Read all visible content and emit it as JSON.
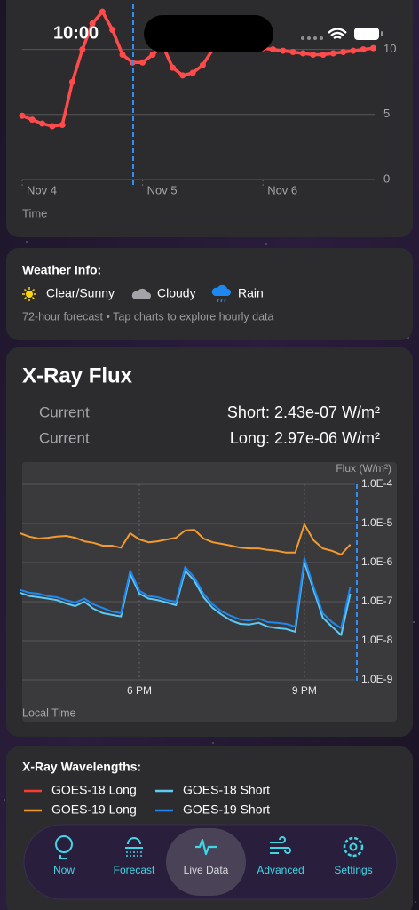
{
  "status_bar": {
    "time": "10:00"
  },
  "temp_chart": {
    "type": "line",
    "x_label": "Time",
    "categories": [
      "Nov 4",
      null,
      null,
      null,
      null,
      null,
      null,
      null,
      null,
      null,
      null,
      null,
      "Nov 5",
      null,
      null,
      null,
      null,
      null,
      null,
      null,
      null,
      null,
      null,
      null,
      "Nov 6",
      null,
      null,
      null,
      null,
      null,
      null,
      null,
      null,
      null,
      null,
      null
    ],
    "series": [
      {
        "color": "#ff4b4b",
        "values": [
          4.9,
          4.6,
          4.3,
          4.1,
          4.2,
          7.5,
          10,
          12,
          12.9,
          11.5,
          9.6,
          9.0,
          9.0,
          9.6,
          10.3,
          8.6,
          8.0,
          8.2,
          8.8,
          10.0,
          10.6,
          10.8,
          10.5,
          10.2,
          10.1,
          10.0,
          9.9,
          9.8,
          9.7,
          9.6,
          9.6,
          9.7,
          9.8,
          9.9,
          10.0,
          10.1
        ]
      }
    ],
    "ylim": [
      0,
      13.8
    ],
    "yticks": [
      0,
      5,
      10
    ],
    "grid": true
  },
  "weather_info": {
    "title": "Weather Info:",
    "items": [
      "Clear/Sunny",
      "Cloudy",
      "Rain"
    ],
    "note": "72-hour forecast • Tap charts to explore hourly data"
  },
  "xray": {
    "title": "X-Ray Flux",
    "readings": [
      {
        "label": "Current",
        "value": "Short: 2.43e-07 W/m²"
      },
      {
        "label": "Current",
        "value": "Long: 2.97e-06 W/m²"
      }
    ],
    "chart": {
      "type": "line",
      "y_label": "Flux (W/m²)",
      "x_label": "Local Time",
      "log_scale": true,
      "categories": [
        null,
        null,
        null,
        null,
        null,
        null,
        null,
        null,
        null,
        null,
        null,
        null,
        null,
        "6 PM",
        null,
        null,
        null,
        null,
        null,
        null,
        null,
        null,
        null,
        null,
        null,
        null,
        null,
        null,
        null,
        null,
        null,
        "9 PM",
        null,
        null,
        null,
        null,
        null
      ],
      "series": [
        {
          "color": "#f39a2d",
          "values": [
            5.6e-06,
            4.6e-06,
            4.1e-06,
            4.3e-06,
            4.6e-06,
            4.8e-06,
            4.3e-06,
            3.5e-06,
            3.2e-06,
            2.7e-06,
            2.7e-06,
            2.4e-06,
            5.6e-06,
            3.9e-06,
            3.3e-06,
            3.5e-06,
            3.9e-06,
            4.3e-06,
            6.6e-06,
            6.9e-06,
            4.1e-06,
            3.3e-06,
            3e-06,
            2.7e-06,
            2.4e-06,
            2.3e-06,
            2.3e-06,
            2.1e-06,
            2e-06,
            1.8e-06,
            1.8e-06,
            9.5e-06,
            3.7e-06,
            2.3e-06,
            2e-06,
            1.6e-06,
            2.9e-06
          ]
        },
        {
          "color": "#5ccaf5",
          "values": [
            1.7e-07,
            1.4e-07,
            1.3e-07,
            1.2e-07,
            1.1e-07,
            9e-08,
            7.7e-08,
            1e-07,
            6.6e-08,
            5.1e-08,
            4.6e-08,
            4.2e-08,
            5.1e-07,
            1.6e-07,
            1.2e-07,
            1.1e-07,
            9.5e-08,
            8.1e-08,
            6.2e-07,
            3.4e-07,
            1.3e-07,
            6.9e-08,
            4.6e-08,
            3.3e-08,
            2.7e-08,
            2.6e-08,
            2.9e-08,
            2.3e-08,
            2.1e-08,
            2e-08,
            1.7e-08,
            1e-06,
            2e-07,
            3.9e-08,
            2.3e-08,
            1.4e-08,
            1.6e-07
          ]
        },
        {
          "color": "#1e88f0",
          "values": [
            2e-07,
            1.7e-07,
            1.6e-07,
            1.4e-07,
            1.3e-07,
            1.1e-07,
            9.5e-08,
            1.2e-07,
            8.5e-08,
            6.9e-08,
            5.6e-08,
            5.1e-08,
            6.2e-07,
            1.9e-07,
            1.4e-07,
            1.3e-07,
            1.1e-07,
            1e-07,
            7.7e-07,
            4.1e-07,
            1.6e-07,
            8.5e-08,
            5.6e-08,
            4.3e-08,
            3.5e-08,
            3.3e-08,
            3.7e-08,
            3e-08,
            2.9e-08,
            2.7e-08,
            2.3e-08,
            1.3e-06,
            2.4e-07,
            5.1e-08,
            3e-08,
            2.1e-08,
            2.4e-07
          ]
        }
      ],
      "ylim": [
        1e-09,
        0.0001
      ],
      "yticks": [
        {
          "value": 0.0001,
          "label": "1.0E-4"
        },
        {
          "value": 1e-05,
          "label": "1.0E-5"
        },
        {
          "value": 1e-06,
          "label": "1.0E-6"
        },
        {
          "value": 1e-07,
          "label": "1.0E-7"
        },
        {
          "value": 1e-08,
          "label": "1.0E-8"
        },
        {
          "value": 1e-09,
          "label": "1.0E-9"
        }
      ],
      "grid": true
    }
  },
  "wavelengths": {
    "title": "X-Ray Wavelengths:",
    "items": [
      {
        "name": "GOES-18 Long",
        "color": "#ff3b30"
      },
      {
        "name": "GOES-18 Short",
        "color": "#5ccaf5"
      },
      {
        "name": "GOES-19 Long",
        "color": "#f39a2d"
      },
      {
        "name": "GOES-19 Short",
        "color": "#1e88f0"
      }
    ]
  },
  "tab_bar": {
    "tabs": [
      "Now",
      "Forecast",
      "Live Data",
      "Advanced",
      "Settings"
    ],
    "selected": 2
  }
}
